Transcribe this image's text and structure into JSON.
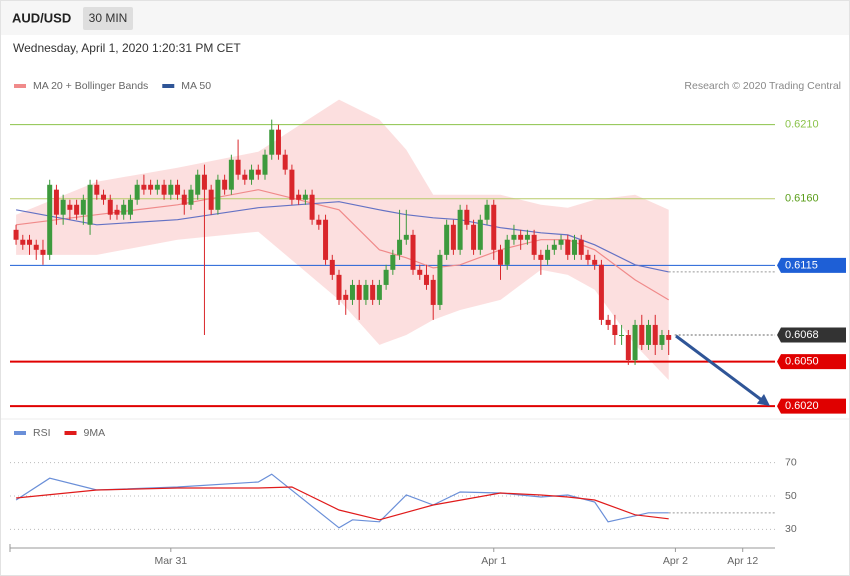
{
  "header": {
    "symbol": "AUD/USD",
    "interval": "30 MIN",
    "timestamp": "Wednesday, April 1, 2020 1:20:31 PM CET",
    "credit": "Research © 2020 Trading Central"
  },
  "chart_data": [
    {
      "type": "candlestick",
      "xlim": [
        -0.9,
        112.8
      ],
      "ylim": [
        0.6014,
        0.623
      ],
      "candles": {
        "up_color": "#3d9a3d",
        "down_color": "#d9262b",
        "open": [
          0.6139,
          0.61323,
          0.61323,
          0.61289,
          0.61255,
          0.61221,
          0.61661,
          0.61492,
          0.61559,
          0.61559,
          0.61492,
          0.61424,
          0.61694,
          0.61627,
          0.61593,
          0.61525,
          0.61492,
          0.61492,
          0.61593,
          0.61694,
          0.61694,
          0.61661,
          0.61694,
          0.61627,
          0.61694,
          0.61627,
          0.61559,
          0.61627,
          0.61762,
          0.61661,
          0.61525,
          0.61728,
          0.61661,
          0.61863,
          0.61762,
          0.61728,
          0.61796,
          0.61762,
          0.61897,
          0.62066,
          0.61897,
          0.61796,
          0.61627,
          0.61593,
          0.61627,
          0.61458,
          0.61458,
          0.61187,
          0.61086,
          0.60951,
          0.60917,
          0.61018,
          0.60917,
          0.61018,
          0.60917,
          0.61018,
          0.6112,
          0.61221,
          0.61323,
          0.61356,
          0.6112,
          0.61086,
          0.61052,
          0.60883,
          0.61221,
          0.61424,
          0.61255,
          0.61525,
          0.61424,
          0.61255,
          0.61458,
          0.61559,
          0.61255,
          0.61154,
          0.61323,
          0.61356,
          0.61323,
          0.61356,
          0.61221,
          0.61187,
          0.61255,
          0.61289,
          0.61323,
          0.61221,
          0.61323,
          0.61221,
          0.61187,
          0.61154,
          0.60782,
          0.60748,
          0.6068,
          0.6068,
          0.60511,
          0.60748,
          0.60613,
          0.60748,
          0.60613,
          0.6068
        ],
        "high": [
          0.61424,
          0.61356,
          0.61356,
          0.61323,
          0.61323,
          0.61728,
          0.61694,
          0.61627,
          0.61593,
          0.61593,
          0.61627,
          0.61728,
          0.61728,
          0.61661,
          0.61627,
          0.61559,
          0.61593,
          0.61627,
          0.61728,
          0.61762,
          0.61728,
          0.61728,
          0.61728,
          0.61728,
          0.61728,
          0.61661,
          0.61694,
          0.61796,
          0.6183,
          0.61694,
          0.61762,
          0.61762,
          0.61897,
          0.61999,
          0.61796,
          0.6183,
          0.6183,
          0.61931,
          0.62134,
          0.621,
          0.61931,
          0.6183,
          0.61661,
          0.61661,
          0.61661,
          0.61492,
          0.61492,
          0.61221,
          0.6112,
          0.60985,
          0.61052,
          0.61052,
          0.61052,
          0.61052,
          0.61052,
          0.61154,
          0.61255,
          0.61525,
          0.61525,
          0.6139,
          0.61154,
          0.61154,
          0.61086,
          0.61255,
          0.61458,
          0.61458,
          0.61559,
          0.61559,
          0.61458,
          0.61492,
          0.61593,
          0.61593,
          0.61289,
          0.61356,
          0.61424,
          0.6139,
          0.6139,
          0.6139,
          0.61255,
          0.61289,
          0.61323,
          0.61356,
          0.61356,
          0.61356,
          0.61356,
          0.61255,
          0.61221,
          0.61187,
          0.60816,
          0.60816,
          0.60748,
          0.60714,
          0.60782,
          0.60816,
          0.60782,
          0.60816,
          0.60714,
          0.60714
        ],
        "low": [
          0.61289,
          0.61255,
          0.61221,
          0.61187,
          0.61154,
          0.61187,
          0.61424,
          0.61424,
          0.61458,
          0.61458,
          0.61424,
          0.61356,
          0.61593,
          0.61559,
          0.61458,
          0.61458,
          0.61458,
          0.61458,
          0.61559,
          0.61627,
          0.61627,
          0.61627,
          0.61593,
          0.61593,
          0.61593,
          0.61492,
          0.61525,
          0.61593,
          0.6068,
          0.61492,
          0.61492,
          0.61627,
          0.61627,
          0.61728,
          0.61694,
          0.61694,
          0.61728,
          0.61728,
          0.61863,
          0.61863,
          0.61762,
          0.61559,
          0.61559,
          0.61559,
          0.61424,
          0.6139,
          0.61154,
          0.61052,
          0.60883,
          0.60816,
          0.60883,
          0.60782,
          0.60883,
          0.60883,
          0.60883,
          0.60985,
          0.61086,
          0.61187,
          0.61289,
          0.61086,
          0.61052,
          0.60985,
          0.60782,
          0.60849,
          0.61187,
          0.61221,
          0.61221,
          0.6139,
          0.61221,
          0.61221,
          0.61424,
          0.61187,
          0.61052,
          0.6112,
          0.61289,
          0.61255,
          0.61289,
          0.61187,
          0.61086,
          0.61154,
          0.61221,
          0.61255,
          0.61187,
          0.61187,
          0.61187,
          0.61154,
          0.6112,
          0.60748,
          0.60714,
          0.60613,
          0.60613,
          0.60478,
          0.60478,
          0.60579,
          0.60579,
          0.60545,
          0.60579,
          0.60545
        ],
        "close": [
          0.61323,
          0.61289,
          0.61289,
          0.61255,
          0.61221,
          0.61694,
          0.61492,
          0.61593,
          0.61525,
          0.61492,
          0.61593,
          0.61694,
          0.61627,
          0.61593,
          0.61492,
          0.61492,
          0.61559,
          0.61593,
          0.61694,
          0.61661,
          0.61661,
          0.61694,
          0.61627,
          0.61694,
          0.61627,
          0.61559,
          0.61661,
          0.61762,
          0.61661,
          0.61525,
          0.61728,
          0.61661,
          0.61863,
          0.61762,
          0.61728,
          0.61796,
          0.61762,
          0.61897,
          0.62066,
          0.61897,
          0.61796,
          0.61593,
          0.61593,
          0.61627,
          0.61458,
          0.61424,
          0.61187,
          0.61086,
          0.60917,
          0.60917,
          0.61018,
          0.60917,
          0.61018,
          0.60917,
          0.61018,
          0.6112,
          0.61221,
          0.61323,
          0.61356,
          0.6112,
          0.61086,
          0.61018,
          0.60883,
          0.61221,
          0.61424,
          0.61255,
          0.61525,
          0.61424,
          0.61255,
          0.61458,
          0.61559,
          0.61255,
          0.61154,
          0.61323,
          0.61356,
          0.61323,
          0.61356,
          0.61221,
          0.61187,
          0.61255,
          0.61289,
          0.61323,
          0.61221,
          0.61323,
          0.61221,
          0.61187,
          0.61154,
          0.60782,
          0.60748,
          0.6068,
          0.6068,
          0.60511,
          0.60748,
          0.60613,
          0.60748,
          0.60613,
          0.6068,
          0.60647
        ]
      },
      "bands": {
        "color": "#fcd9d9",
        "x": [
          0,
          12,
          24,
          36,
          48,
          54,
          58,
          62,
          66,
          72,
          78,
          82,
          86,
          92,
          97
        ],
        "upper": [
          0.61492,
          0.61715,
          0.61809,
          0.61917,
          0.62269,
          0.62134,
          0.61931,
          0.61627,
          0.61627,
          0.61627,
          0.61559,
          0.61539,
          0.61593,
          0.61627,
          0.61525
        ],
        "lower": [
          0.61221,
          0.61221,
          0.61323,
          0.61377,
          0.60917,
          0.60613,
          0.6068,
          0.60782,
          0.60849,
          0.60917,
          0.6112,
          0.61086,
          0.60985,
          0.60613,
          0.60376
        ]
      },
      "series": [
        {
          "name": "MA 20 + Bollinger Bands",
          "color": "#f08a8a",
          "x": [
            0,
            12,
            24,
            36,
            48,
            54,
            58,
            62,
            66,
            72,
            78,
            82,
            86,
            92,
            97
          ],
          "values": [
            0.61424,
            0.61492,
            0.61559,
            0.61661,
            0.61525,
            0.61255,
            0.61201,
            0.61133,
            0.61154,
            0.61255,
            0.61323,
            0.61323,
            0.61255,
            0.61052,
            0.60917
          ]
        },
        {
          "name": "MA 50",
          "color": "#2f5597",
          "line_color": "#6472c4",
          "extend": true,
          "x": [
            0,
            12,
            24,
            36,
            48,
            54,
            58,
            62,
            66,
            72,
            78,
            82,
            86,
            92,
            97
          ],
          "values": [
            0.61525,
            0.61424,
            0.61458,
            0.61539,
            0.6158,
            0.61525,
            0.61492,
            0.61471,
            0.61458,
            0.61404,
            0.6137,
            0.61356,
            0.61289,
            0.61154,
            0.61106
          ]
        }
      ],
      "levels": [
        {
          "value": 0.621,
          "label": "0.6210",
          "color": "#8bc34a",
          "boxed": false,
          "line_width": 1
        },
        {
          "value": 0.616,
          "label": "0.6160",
          "color": "#b8cc6a",
          "text_color": "#5a9e1a",
          "boxed": false,
          "line_width": 1
        },
        {
          "value": 0.6115,
          "label": "0.6115",
          "color": "#1e5fd6",
          "boxed": true,
          "line_width": 1
        },
        {
          "value": 0.6068,
          "label": "0.6068",
          "color": "#333333",
          "boxed": true,
          "dashed": true,
          "line_width": 1
        },
        {
          "value": 0.605,
          "label": "0.6050",
          "color": "#e00000",
          "boxed": true,
          "line_width": 2
        },
        {
          "value": 0.602,
          "label": "0.6020",
          "color": "#e00000",
          "boxed": true,
          "line_width": 2
        }
      ]
    },
    {
      "type": "line",
      "xlim": [
        -0.9,
        112.8
      ],
      "ylim": [
        20,
        80
      ],
      "yticks": [
        30,
        50,
        70
      ],
      "grid": true,
      "xticks": [
        {
          "value": 23,
          "label": "Mar 31"
        },
        {
          "value": 71,
          "label": "Apr 1"
        },
        {
          "value": 98,
          "label": "Apr 2"
        },
        {
          "value": 108,
          "label": "Apr 12"
        }
      ],
      "series": [
        {
          "name": "RSI",
          "color": "#6a8fd8",
          "extend": true,
          "x": [
            0,
            5,
            12,
            24,
            36,
            38,
            48,
            50,
            54,
            58,
            62,
            66,
            72,
            78,
            82,
            86,
            88,
            92,
            94,
            97
          ],
          "values": [
            47.6,
            60.7,
            53.6,
            55.4,
            58.4,
            63.1,
            30.9,
            35.7,
            34.5,
            50.6,
            44.6,
            52.4,
            51.8,
            49.4,
            50.6,
            46.4,
            34.5,
            38.1,
            39.9,
            39.9
          ]
        },
        {
          "name": "9MA",
          "color": "#e01b1b",
          "x": [
            0,
            12,
            24,
            36,
            41,
            48,
            54,
            62,
            72,
            78,
            82,
            86,
            92,
            97
          ],
          "values": [
            48.8,
            53.6,
            54.8,
            54.8,
            55.4,
            41.6,
            35.7,
            44.6,
            51.8,
            50.6,
            49.4,
            47.6,
            38.7,
            36.3
          ]
        }
      ]
    }
  ]
}
